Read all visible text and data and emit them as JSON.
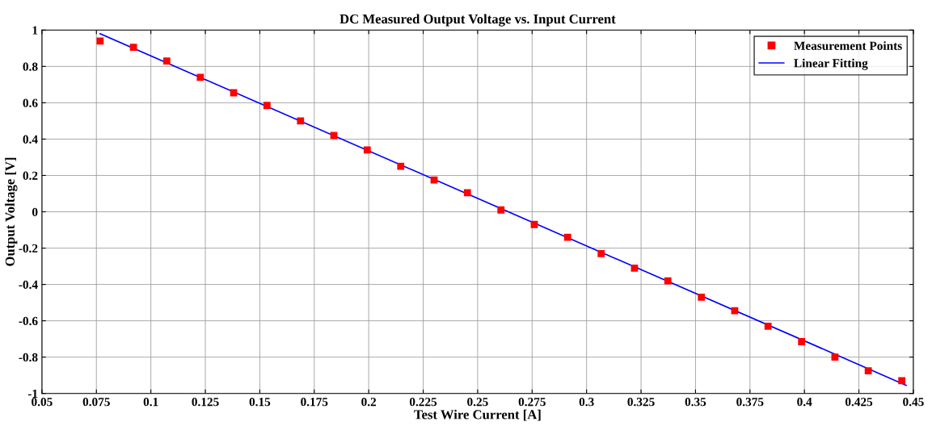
{
  "chart_data": {
    "type": "scatter",
    "title": "DC Measured Output Voltage vs. Input Current",
    "xlabel": "Test Wire Current [A]",
    "ylabel": "Output Voltage [V]",
    "xlim": [
      0.05,
      0.45
    ],
    "xticks": [
      0.05,
      0.075,
      0.1,
      0.125,
      0.15,
      0.175,
      0.2,
      0.225,
      0.25,
      0.275,
      0.3,
      0.325,
      0.35,
      0.375,
      0.4,
      0.425,
      0.45
    ],
    "ylim": [
      -1,
      1
    ],
    "yticks": [
      -1,
      -0.8,
      -0.6,
      -0.4,
      -0.2,
      0,
      0.2,
      0.4,
      0.6,
      0.8,
      1
    ],
    "grid": true,
    "legend": "top right",
    "series": [
      {
        "name": "Measurement Points",
        "marker": "square",
        "color": "#ff0000",
        "x": [
          0.0767,
          0.092,
          0.1073,
          0.1227,
          0.138,
          0.1533,
          0.1687,
          0.184,
          0.1993,
          0.2147,
          0.23,
          0.2453,
          0.2607,
          0.276,
          0.2913,
          0.3067,
          0.322,
          0.3373,
          0.3527,
          0.368,
          0.3833,
          0.3987,
          0.414,
          0.4293,
          0.4447
        ],
        "values": [
          0.94,
          0.905,
          0.83,
          0.74,
          0.655,
          0.585,
          0.5,
          0.42,
          0.34,
          0.25,
          0.175,
          0.105,
          0.01,
          -0.07,
          -0.14,
          -0.23,
          -0.31,
          -0.38,
          -0.47,
          -0.545,
          -0.63,
          -0.715,
          -0.8,
          -0.875,
          -0.93
        ]
      },
      {
        "name": "Linear Fitting",
        "type": "line",
        "marker": "none",
        "line_style": "solid",
        "color": "#0000ff",
        "x": [
          0.0767,
          0.4467
        ],
        "values": [
          0.98,
          -0.955
        ]
      }
    ]
  }
}
